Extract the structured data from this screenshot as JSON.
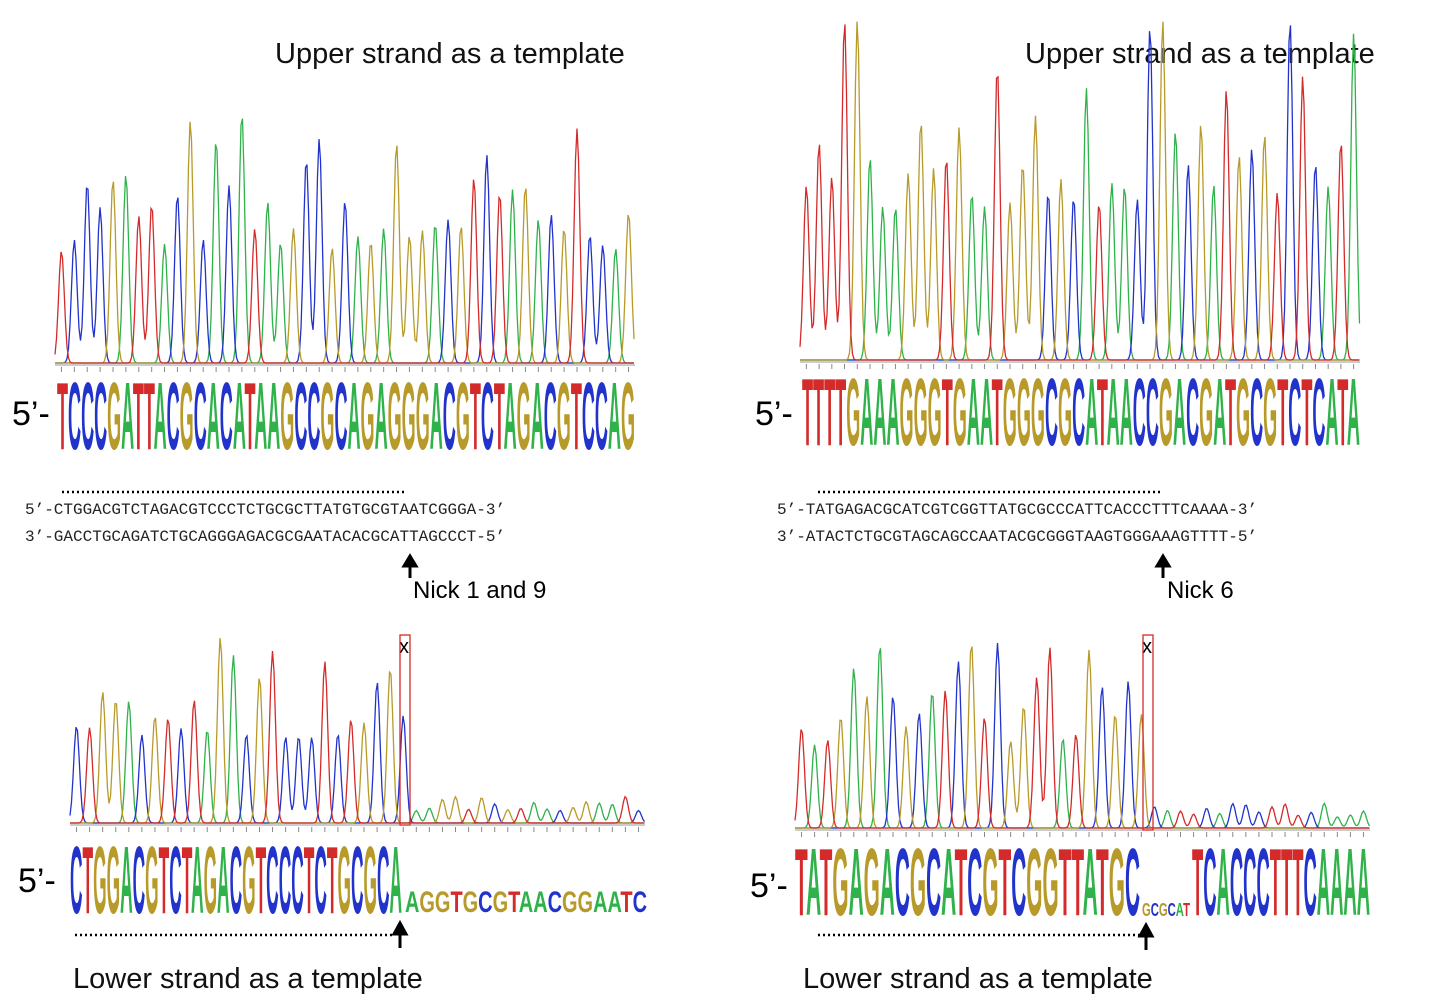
{
  "top_left": {
    "title": "Upper strand as a template",
    "prefix": "5’-",
    "sequence": "TCCCGATTACGCACATAAGCCGCAGAGGGACGTCTAGACGTCCAG"
  },
  "top_right": {
    "title": "Upper strand as a template",
    "prefix": "5’-",
    "sequence": "TTTTGAAAGGGTGAATGGGCGCATAACCGACGATGCGTCTCATA"
  },
  "duplex_left": {
    "upper": "5’-CTGGACGTCTAGACGTCCCTCTGCGCTTATGTGCGTAATCGGGA-3’",
    "lower": "3’-GACCTGCAGATCTGCAGGGAGACGCGAATACACGCATTAGCCCT-5’",
    "nick": "Nick 1 and 9"
  },
  "duplex_right": {
    "upper": "5’-TATGAGACGCATCGTCGGTTATGCGCCCATTCACCCTTTCAAAA-3’",
    "lower": "3’-ATACTCTGCGTAGCAGCCAATACGCGGGTAAGTGGGAAAGTTTT-5’",
    "nick": "Nick 6"
  },
  "bottom_left": {
    "caption": "Lower strand as a template",
    "prefix": "5’-",
    "sequence": "CTGGACGTCTAGACGTCCCTCTGCGCA",
    "tail": "AGGTGCGTAACGGAATC",
    "mark": "x"
  },
  "bottom_right": {
    "caption": "Lower strand as a template",
    "prefix": "5’-",
    "sequence": "TATGAGACGCATCGTCGGTTATGC",
    "tail": "GCGCAT",
    "sequence2": "TCACCCTTTCAAAA",
    "mark": "x"
  }
}
